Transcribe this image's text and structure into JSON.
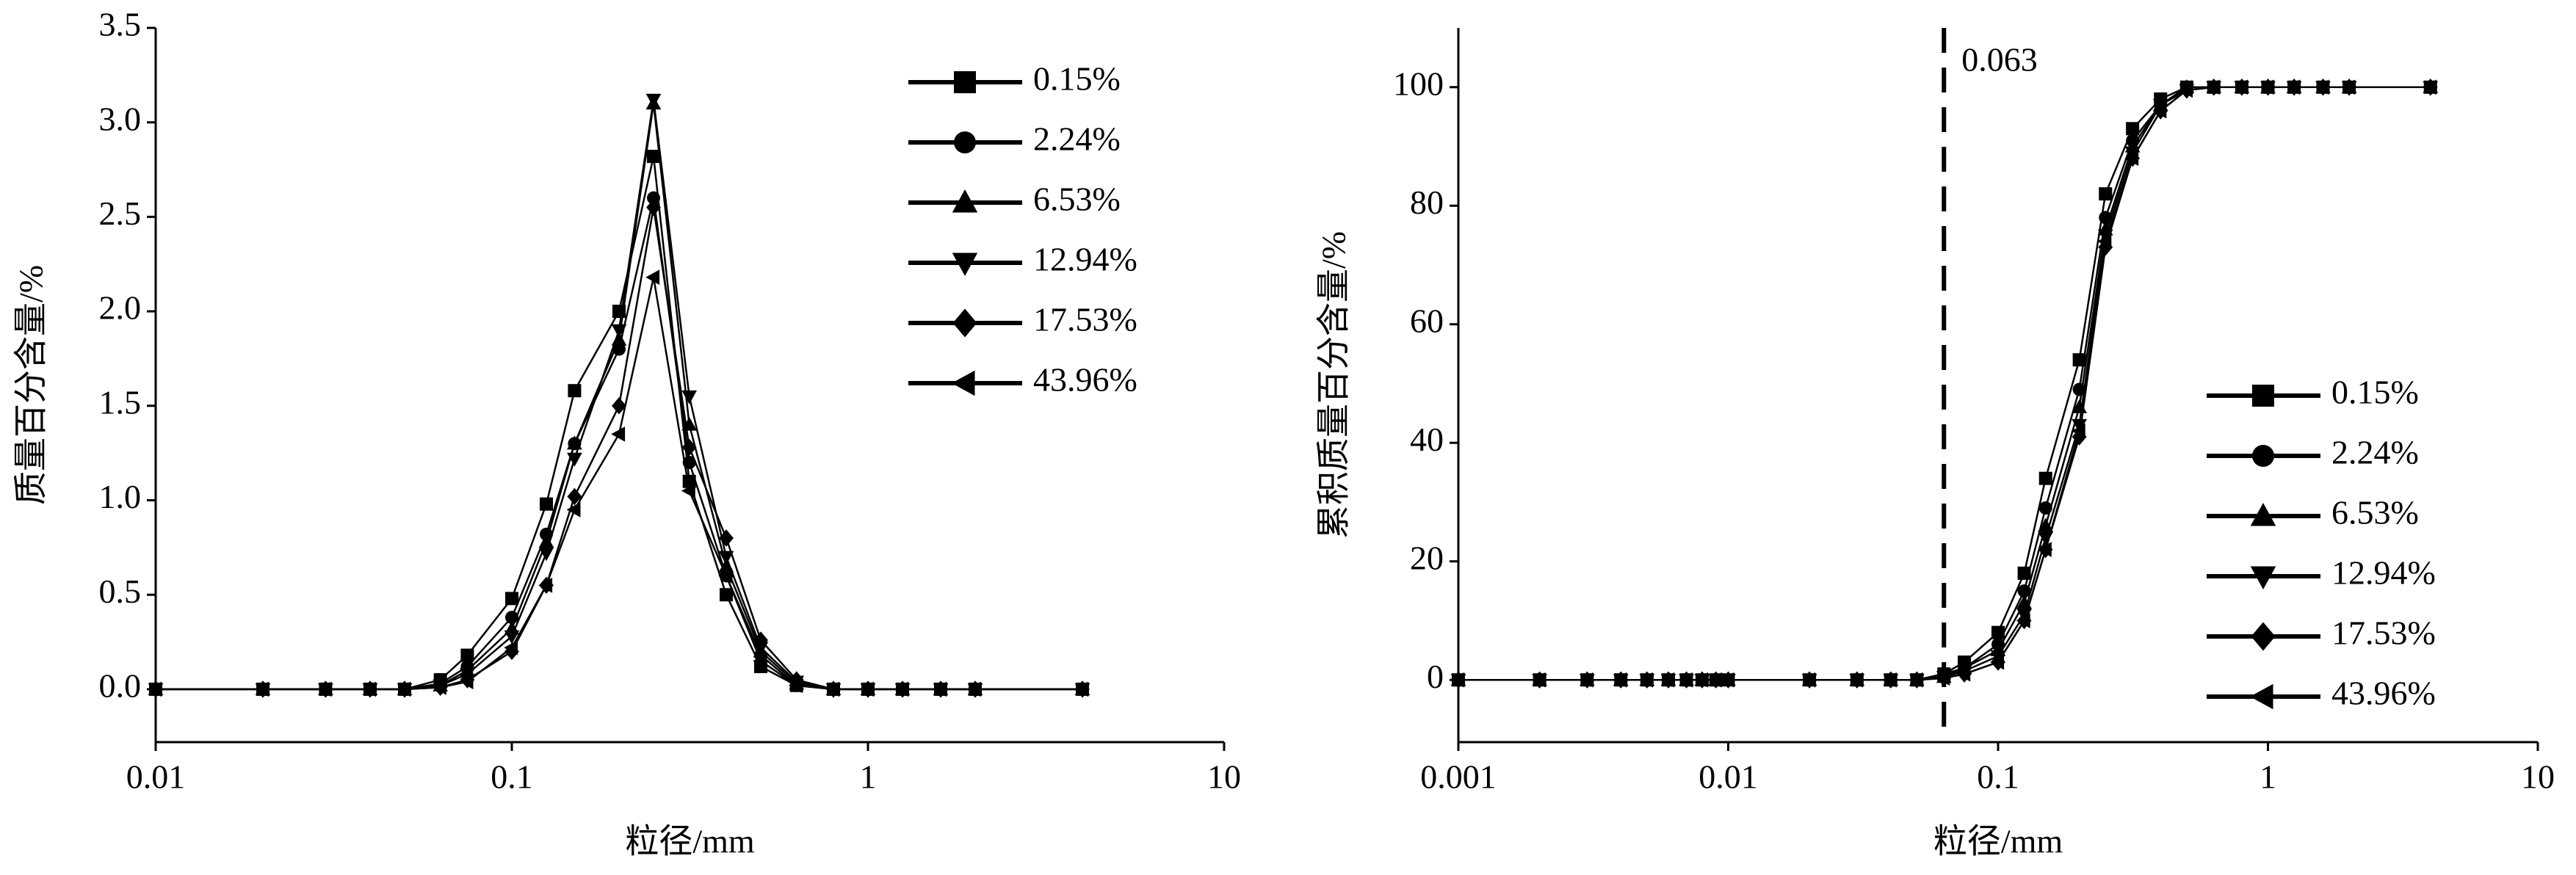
{
  "chart_data": [
    {
      "type": "line",
      "log_x": true,
      "xlabel": "粒径/mm",
      "ylabel": "质量百分含量/%",
      "legend": "upper right",
      "xlim": [
        0.01,
        10
      ],
      "ylim": [
        -0.28,
        3.5
      ],
      "xticks": [
        0.01,
        0.1,
        1,
        10
      ],
      "yticks": [
        {
          "value": 0,
          "label": "0.0"
        },
        {
          "value": 0.5,
          "label": "0.5"
        },
        {
          "value": 1,
          "label": "1.0"
        },
        {
          "value": 1.5,
          "label": "1.5"
        },
        {
          "value": 2,
          "label": "2.0"
        },
        {
          "value": 2.5,
          "label": "2.5"
        },
        {
          "value": 3,
          "label": "3.0"
        },
        {
          "value": 3.5,
          "label": "3.5"
        }
      ],
      "x": [
        0.01,
        0.02,
        0.03,
        0.04,
        0.05,
        0.063,
        0.075,
        0.1,
        0.125,
        0.15,
        0.2,
        0.25,
        0.315,
        0.4,
        0.5,
        0.63,
        0.8,
        1,
        1.25,
        1.6,
        2,
        4
      ],
      "series": [
        {
          "name": "0.15%",
          "color": "#000000",
          "marker": "square",
          "values": [
            0,
            0,
            0,
            0,
            0,
            0.05,
            0.18,
            0.48,
            0.98,
            1.58,
            2.0,
            2.82,
            1.1,
            0.5,
            0.12,
            0.02,
            0,
            0,
            0,
            0,
            0,
            0
          ]
        },
        {
          "name": "2.24%",
          "color": "#000000",
          "marker": "circle",
          "values": [
            0,
            0,
            0,
            0,
            0,
            0.03,
            0.12,
            0.38,
            0.82,
            1.3,
            1.8,
            2.6,
            1.2,
            0.6,
            0.18,
            0.02,
            0,
            0,
            0,
            0,
            0,
            0
          ]
        },
        {
          "name": "6.53%",
          "color": "#000000",
          "marker": "triangle-up",
          "values": [
            0,
            0,
            0,
            0,
            0,
            0.02,
            0.1,
            0.32,
            0.78,
            1.3,
            1.85,
            3.1,
            1.4,
            0.65,
            0.2,
            0.03,
            0,
            0,
            0,
            0,
            0,
            0
          ]
        },
        {
          "name": "12.94%",
          "color": "#000000",
          "marker": "triangle-down",
          "values": [
            0,
            0,
            0,
            0,
            0,
            0.02,
            0.08,
            0.28,
            0.72,
            1.22,
            1.9,
            3.12,
            1.55,
            0.7,
            0.22,
            0.04,
            0,
            0,
            0,
            0,
            0,
            0
          ]
        },
        {
          "name": "17.53%",
          "color": "#000000",
          "marker": "diamond",
          "values": [
            0,
            0,
            0,
            0,
            0,
            0.01,
            0.05,
            0.2,
            0.55,
            1.02,
            1.5,
            2.55,
            1.28,
            0.8,
            0.26,
            0.05,
            0,
            0,
            0,
            0,
            0,
            0
          ]
        },
        {
          "name": "43.96%",
          "color": "#000000",
          "marker": "triangle-left",
          "values": [
            0,
            0,
            0,
            0,
            0,
            0.01,
            0.04,
            0.22,
            0.55,
            0.95,
            1.35,
            2.18,
            1.05,
            0.6,
            0.15,
            0.02,
            0,
            0,
            0,
            0,
            0,
            0
          ]
        }
      ]
    },
    {
      "type": "line",
      "log_x": true,
      "xlabel": "粒径/mm",
      "ylabel": "累积质量百分含量/%",
      "legend": "lower right",
      "xlim": [
        0.001,
        10
      ],
      "ylim": [
        -10.5,
        110
      ],
      "xticks": [
        0.001,
        0.01,
        0.1,
        1,
        10
      ],
      "yticks": [
        0,
        20,
        40,
        60,
        80,
        100
      ],
      "vline": {
        "x": 0.063,
        "label": "0.063"
      },
      "x": [
        0.001,
        0.002,
        0.003,
        0.004,
        0.005,
        0.006,
        0.007,
        0.008,
        0.009,
        0.01,
        0.02,
        0.03,
        0.04,
        0.05,
        0.063,
        0.075,
        0.1,
        0.125,
        0.15,
        0.2,
        0.25,
        0.315,
        0.4,
        0.5,
        0.63,
        0.8,
        1,
        1.25,
        1.6,
        2,
        4
      ],
      "series": [
        {
          "name": "0.15%",
          "color": "#000000",
          "marker": "square",
          "values": [
            0,
            0,
            0,
            0,
            0,
            0,
            0,
            0,
            0,
            0,
            0,
            0,
            0,
            0,
            1,
            3,
            8,
            18,
            34,
            54,
            82,
            93,
            98,
            100,
            100,
            100,
            100,
            100,
            100,
            100,
            100
          ]
        },
        {
          "name": "2.24%",
          "color": "#000000",
          "marker": "circle",
          "values": [
            0,
            0,
            0,
            0,
            0,
            0,
            0,
            0,
            0,
            0,
            0,
            0,
            0,
            0,
            1,
            2,
            6,
            15,
            29,
            49,
            78,
            91,
            97,
            100,
            100,
            100,
            100,
            100,
            100,
            100,
            100
          ]
        },
        {
          "name": "6.53%",
          "color": "#000000",
          "marker": "triangle-up",
          "values": [
            0,
            0,
            0,
            0,
            0,
            0,
            0,
            0,
            0,
            0,
            0,
            0,
            0,
            0,
            0.5,
            2,
            5,
            13,
            26,
            46,
            76,
            90,
            97,
            100,
            100,
            100,
            100,
            100,
            100,
            100,
            100
          ]
        },
        {
          "name": "12.94%",
          "color": "#000000",
          "marker": "triangle-down",
          "values": [
            0,
            0,
            0,
            0,
            0,
            0,
            0,
            0,
            0,
            0,
            0,
            0,
            0,
            0,
            0.5,
            1.5,
            4,
            11,
            24,
            43,
            75,
            89,
            97,
            99.5,
            100,
            100,
            100,
            100,
            100,
            100,
            100
          ]
        },
        {
          "name": "17.53%",
          "color": "#000000",
          "marker": "diamond",
          "values": [
            0,
            0,
            0,
            0,
            0,
            0,
            0,
            0,
            0,
            0,
            0,
            0,
            0,
            0,
            0.3,
            1,
            3,
            10,
            22,
            41,
            73,
            88,
            96,
            99.5,
            100,
            100,
            100,
            100,
            100,
            100,
            100
          ]
        },
        {
          "name": "43.96%",
          "color": "#000000",
          "marker": "triangle-left",
          "values": [
            0,
            0,
            0,
            0,
            0,
            0,
            0,
            0,
            0,
            0,
            0,
            0,
            0,
            0,
            0.3,
            1,
            3,
            10,
            22,
            42,
            74,
            88,
            96,
            99.5,
            100,
            100,
            100,
            100,
            100,
            100,
            100
          ]
        }
      ]
    }
  ]
}
